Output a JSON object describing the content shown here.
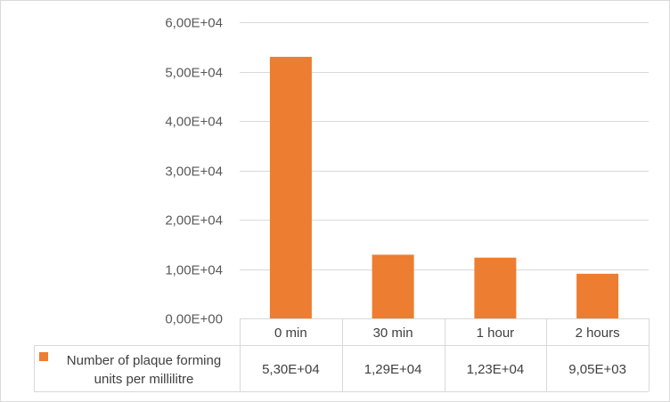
{
  "chart_data": {
    "type": "bar",
    "title": "",
    "xlabel": "",
    "ylabel": "",
    "categories": [
      "0 min",
      "30 min",
      "1 hour",
      "2 hours"
    ],
    "series": [
      {
        "name": "Number of plaque forming units per millilitre",
        "name_lines": [
          "Number of plaque forming",
          "units per millilitre"
        ],
        "values": [
          53000,
          12900,
          12300,
          9050
        ],
        "value_labels": [
          "5,30E+04",
          "1,29E+04",
          "1,23E+04",
          "9,05E+03"
        ]
      }
    ],
    "ylim": [
      0,
      60000
    ],
    "yticks": [
      0,
      10000,
      20000,
      30000,
      40000,
      50000,
      60000
    ],
    "ytick_labels": [
      "0,00E+00",
      "1,00E+04",
      "2,00E+04",
      "3,00E+04",
      "4,00E+04",
      "5,00E+04",
      "6,00E+04"
    ],
    "grid": true,
    "data_table": true,
    "colors": {
      "bar": "#ED7D31",
      "grid": "#d9d9d9",
      "axis_text": "#595959"
    }
  }
}
